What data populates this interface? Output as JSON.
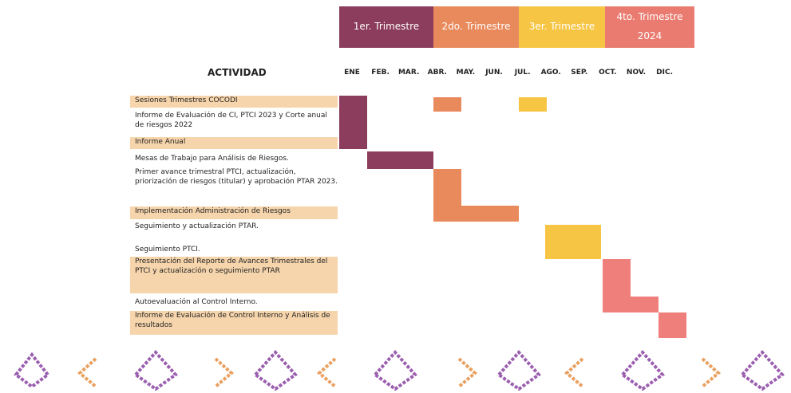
{
  "header": {
    "quarters": [
      "1er. Trimestre",
      "2do. Trimestre",
      "3er. Trimestre",
      "4to. Trimestre"
    ],
    "year": "2024",
    "activity_label": "ACTIVIDAD",
    "months": [
      "ENE",
      "FEB.",
      "MAR.",
      "ABR.",
      "MAY.",
      "JUN.",
      "JUL.",
      "AGO.",
      "SEP.",
      "OCT.",
      "NOV.",
      "DIC."
    ]
  },
  "activities": [
    "Sesiones Trimestres COCODI",
    "Informe de Evaluación de CI, PTCI 2023 y Corte anual de riesgos 2022",
    "Informe Anual",
    "Mesas de Trabajo para Análisis de Riesgos.",
    "Primer avance trimestral PTCI, actualización, priorización de riesgos (titular) y aprobación PTAR 2023.",
    "Implementación Administración de Riesgos",
    "Seguimiento y actualización PTAR.",
    "Seguimiento PTCI.",
    "Presentación del Reporte de Avances Trimestrales del PTCI y actualización o seguimiento PTAR",
    "Autoevaluación al Control Interno.",
    "Informe de Evaluación de Control Interno y Análisis de resultados"
  ]
}
